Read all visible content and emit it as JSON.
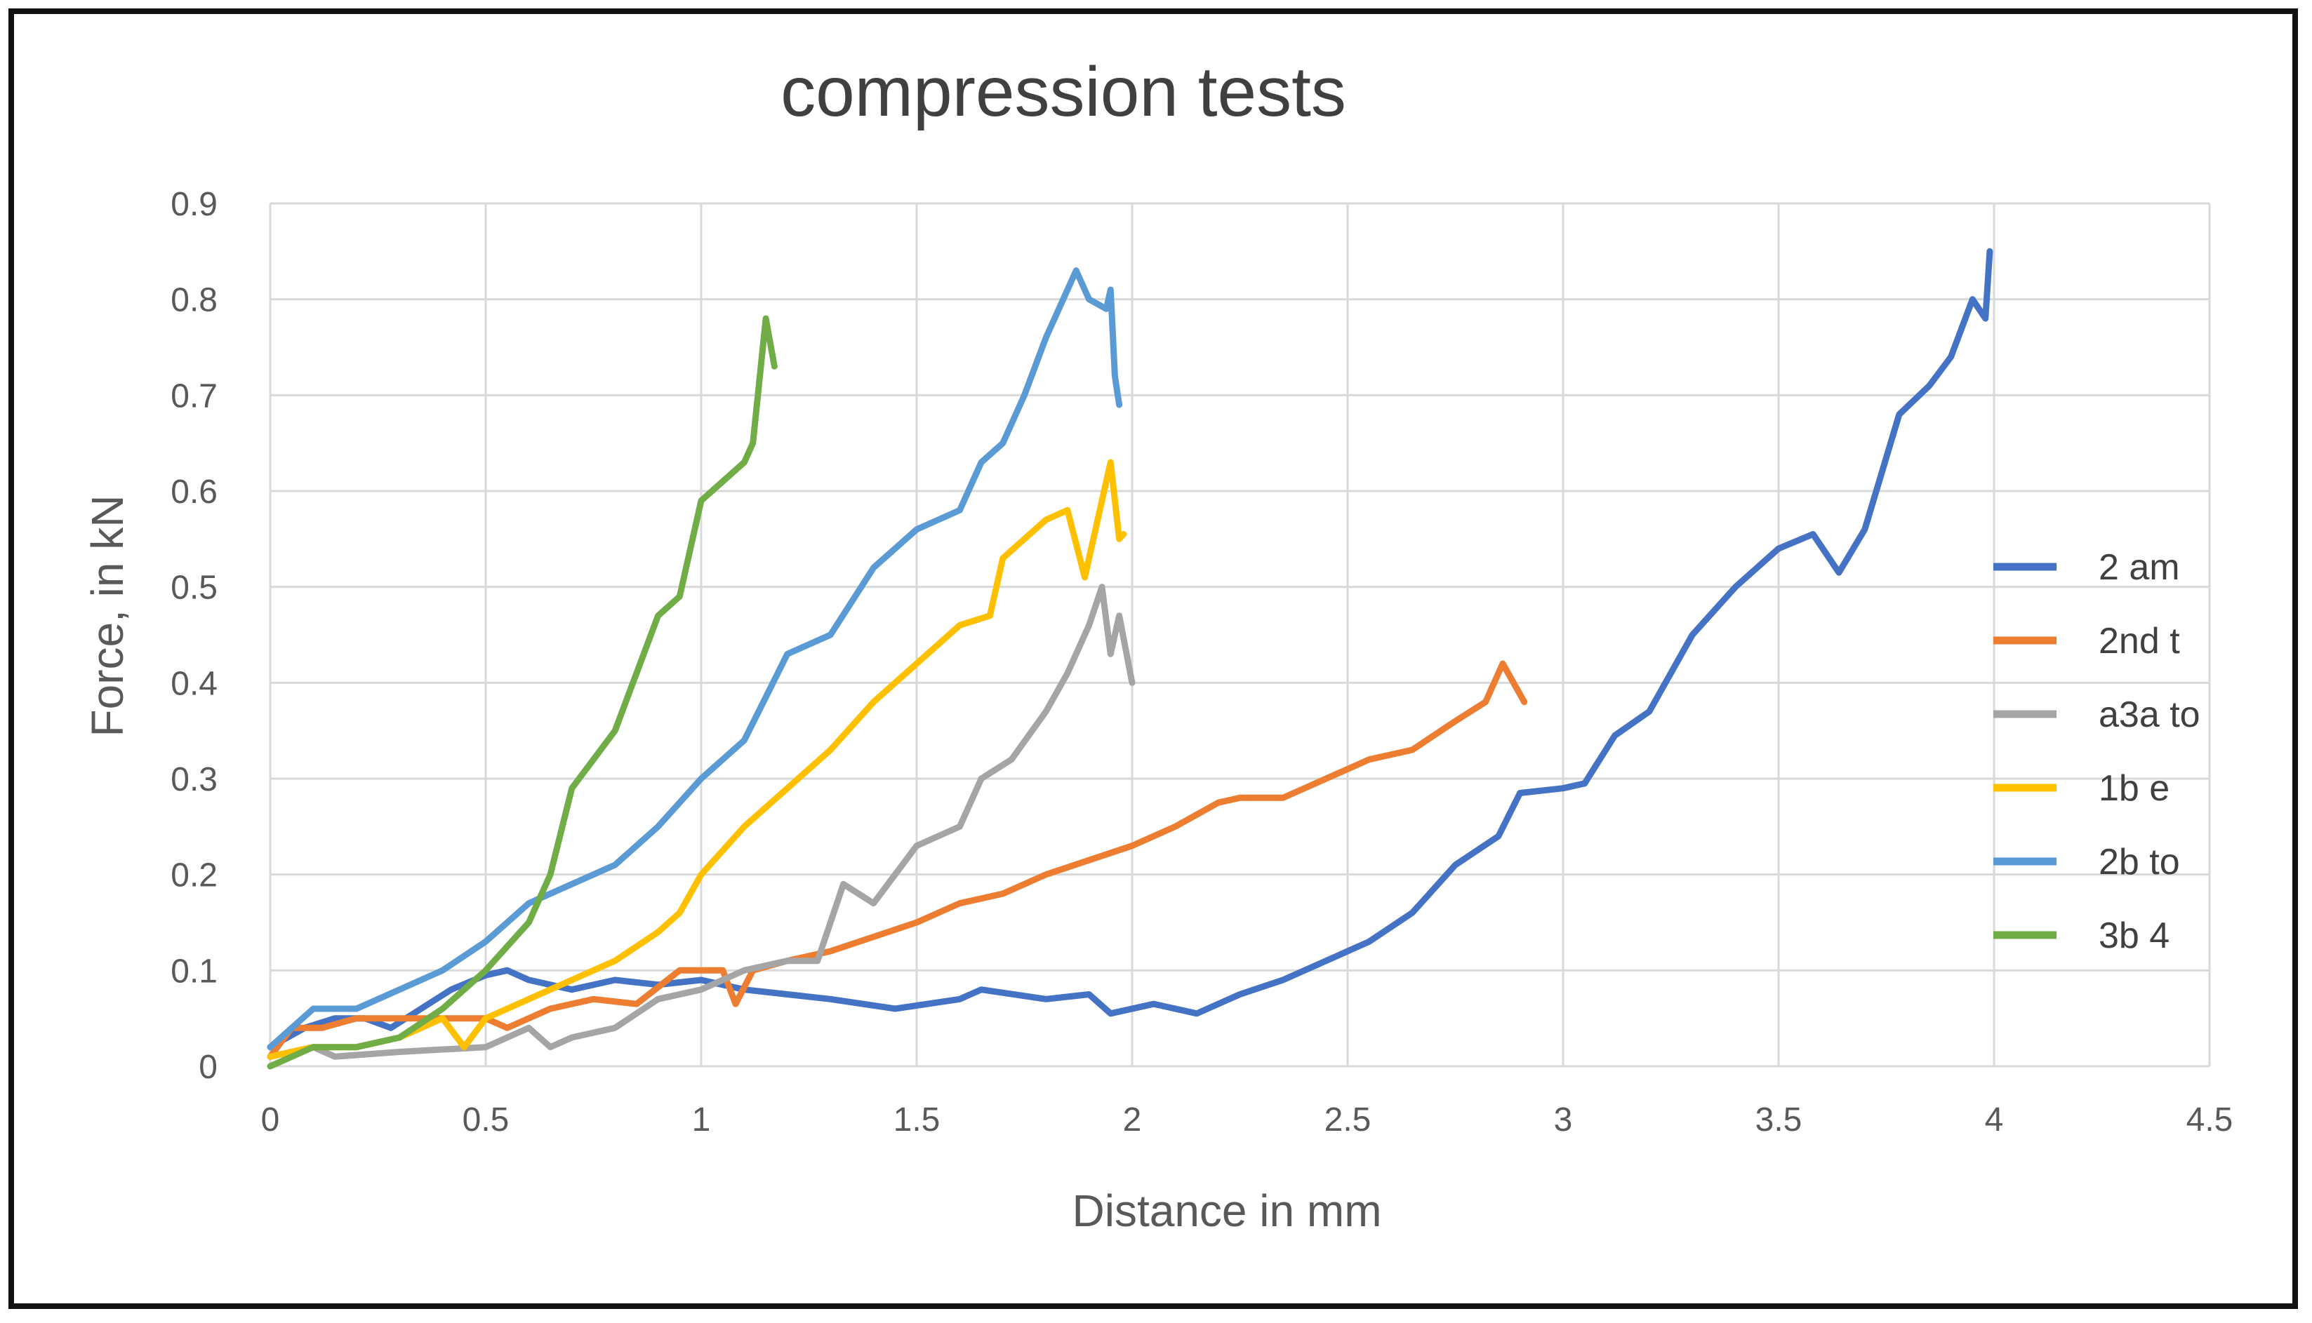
{
  "chart_data": {
    "type": "line",
    "title": "compression tests",
    "xlabel": "Distance in mm",
    "ylabel": "Force, in kN",
    "xlim": [
      0,
      4.5
    ],
    "ylim": [
      0,
      0.9
    ],
    "grid": true,
    "legend_position": "right",
    "x_ticks": [
      "0",
      "0.5",
      "1",
      "1.5",
      "2",
      "2.5",
      "3",
      "3.5",
      "4",
      "4.5"
    ],
    "y_ticks": [
      "0",
      "0.1",
      "0.2",
      "0.3",
      "0.4",
      "0.5",
      "0.6",
      "0.7",
      "0.8",
      "0.9"
    ],
    "series": [
      {
        "name": "2 am",
        "color": "#4472C4",
        "points": [
          [
            0,
            0.02
          ],
          [
            0.08,
            0.04
          ],
          [
            0.15,
            0.05
          ],
          [
            0.22,
            0.05
          ],
          [
            0.28,
            0.04
          ],
          [
            0.35,
            0.06
          ],
          [
            0.42,
            0.08
          ],
          [
            0.5,
            0.095
          ],
          [
            0.55,
            0.1
          ],
          [
            0.6,
            0.09
          ],
          [
            0.7,
            0.08
          ],
          [
            0.8,
            0.09
          ],
          [
            0.9,
            0.085
          ],
          [
            1.0,
            0.09
          ],
          [
            1.1,
            0.08
          ],
          [
            1.2,
            0.075
          ],
          [
            1.3,
            0.07
          ],
          [
            1.45,
            0.06
          ],
          [
            1.6,
            0.07
          ],
          [
            1.65,
            0.08
          ],
          [
            1.8,
            0.07
          ],
          [
            1.9,
            0.075
          ],
          [
            1.95,
            0.055
          ],
          [
            2.05,
            0.065
          ],
          [
            2.15,
            0.055
          ],
          [
            2.25,
            0.075
          ],
          [
            2.35,
            0.09
          ],
          [
            2.45,
            0.11
          ],
          [
            2.55,
            0.13
          ],
          [
            2.65,
            0.16
          ],
          [
            2.75,
            0.21
          ],
          [
            2.85,
            0.24
          ],
          [
            2.9,
            0.285
          ],
          [
            3.0,
            0.29
          ],
          [
            3.05,
            0.295
          ],
          [
            3.12,
            0.345
          ],
          [
            3.2,
            0.37
          ],
          [
            3.3,
            0.45
          ],
          [
            3.4,
            0.5
          ],
          [
            3.5,
            0.54
          ],
          [
            3.58,
            0.555
          ],
          [
            3.64,
            0.515
          ],
          [
            3.7,
            0.56
          ],
          [
            3.78,
            0.68
          ],
          [
            3.85,
            0.71
          ],
          [
            3.9,
            0.74
          ],
          [
            3.95,
            0.8
          ],
          [
            3.98,
            0.78
          ],
          [
            3.99,
            0.85
          ]
        ]
      },
      {
        "name": "2nd t",
        "color": "#ED7D31",
        "points": [
          [
            0,
            0.01
          ],
          [
            0.05,
            0.04
          ],
          [
            0.12,
            0.04
          ],
          [
            0.2,
            0.05
          ],
          [
            0.3,
            0.05
          ],
          [
            0.4,
            0.05
          ],
          [
            0.5,
            0.05
          ],
          [
            0.55,
            0.04
          ],
          [
            0.65,
            0.06
          ],
          [
            0.75,
            0.07
          ],
          [
            0.85,
            0.065
          ],
          [
            0.95,
            0.1
          ],
          [
            1.05,
            0.1
          ],
          [
            1.08,
            0.065
          ],
          [
            1.12,
            0.1
          ],
          [
            1.2,
            0.11
          ],
          [
            1.3,
            0.12
          ],
          [
            1.4,
            0.135
          ],
          [
            1.5,
            0.15
          ],
          [
            1.6,
            0.17
          ],
          [
            1.7,
            0.18
          ],
          [
            1.8,
            0.2
          ],
          [
            1.9,
            0.215
          ],
          [
            2.0,
            0.23
          ],
          [
            2.1,
            0.25
          ],
          [
            2.2,
            0.275
          ],
          [
            2.25,
            0.28
          ],
          [
            2.35,
            0.28
          ],
          [
            2.45,
            0.3
          ],
          [
            2.55,
            0.32
          ],
          [
            2.65,
            0.33
          ],
          [
            2.75,
            0.36
          ],
          [
            2.82,
            0.38
          ],
          [
            2.86,
            0.42
          ],
          [
            2.91,
            0.38
          ]
        ]
      },
      {
        "name": "a3a to",
        "color": "#A5A5A5",
        "points": [
          [
            0,
            0.01
          ],
          [
            0.1,
            0.02
          ],
          [
            0.15,
            0.01
          ],
          [
            0.3,
            0.015
          ],
          [
            0.5,
            0.02
          ],
          [
            0.6,
            0.04
          ],
          [
            0.65,
            0.02
          ],
          [
            0.7,
            0.03
          ],
          [
            0.8,
            0.04
          ],
          [
            0.9,
            0.07
          ],
          [
            1.0,
            0.08
          ],
          [
            1.1,
            0.1
          ],
          [
            1.2,
            0.11
          ],
          [
            1.27,
            0.11
          ],
          [
            1.33,
            0.19
          ],
          [
            1.4,
            0.17
          ],
          [
            1.45,
            0.2
          ],
          [
            1.5,
            0.23
          ],
          [
            1.6,
            0.25
          ],
          [
            1.65,
            0.3
          ],
          [
            1.72,
            0.32
          ],
          [
            1.8,
            0.37
          ],
          [
            1.85,
            0.41
          ],
          [
            1.9,
            0.46
          ],
          [
            1.93,
            0.5
          ],
          [
            1.95,
            0.43
          ],
          [
            1.97,
            0.47
          ],
          [
            2.0,
            0.4
          ]
        ]
      },
      {
        "name": "1b e",
        "color": "#FFC000",
        "points": [
          [
            0,
            0.01
          ],
          [
            0.1,
            0.02
          ],
          [
            0.2,
            0.02
          ],
          [
            0.3,
            0.03
          ],
          [
            0.4,
            0.05
          ],
          [
            0.45,
            0.02
          ],
          [
            0.5,
            0.05
          ],
          [
            0.6,
            0.07
          ],
          [
            0.7,
            0.09
          ],
          [
            0.8,
            0.11
          ],
          [
            0.9,
            0.14
          ],
          [
            0.95,
            0.16
          ],
          [
            1.0,
            0.2
          ],
          [
            1.1,
            0.25
          ],
          [
            1.2,
            0.29
          ],
          [
            1.3,
            0.33
          ],
          [
            1.4,
            0.38
          ],
          [
            1.5,
            0.42
          ],
          [
            1.6,
            0.46
          ],
          [
            1.67,
            0.47
          ],
          [
            1.7,
            0.53
          ],
          [
            1.8,
            0.57
          ],
          [
            1.85,
            0.58
          ],
          [
            1.89,
            0.51
          ],
          [
            1.93,
            0.59
          ],
          [
            1.95,
            0.63
          ],
          [
            1.97,
            0.55
          ],
          [
            1.98,
            0.555
          ]
        ]
      },
      {
        "name": "2b to",
        "color": "#5B9BD5",
        "points": [
          [
            0,
            0.02
          ],
          [
            0.1,
            0.06
          ],
          [
            0.2,
            0.06
          ],
          [
            0.3,
            0.08
          ],
          [
            0.4,
            0.1
          ],
          [
            0.5,
            0.13
          ],
          [
            0.6,
            0.17
          ],
          [
            0.7,
            0.19
          ],
          [
            0.8,
            0.21
          ],
          [
            0.9,
            0.25
          ],
          [
            1.0,
            0.3
          ],
          [
            1.1,
            0.34
          ],
          [
            1.2,
            0.43
          ],
          [
            1.3,
            0.45
          ],
          [
            1.4,
            0.52
          ],
          [
            1.5,
            0.56
          ],
          [
            1.6,
            0.58
          ],
          [
            1.65,
            0.63
          ],
          [
            1.7,
            0.65
          ],
          [
            1.75,
            0.7
          ],
          [
            1.8,
            0.76
          ],
          [
            1.87,
            0.83
          ],
          [
            1.9,
            0.8
          ],
          [
            1.94,
            0.79
          ],
          [
            1.95,
            0.81
          ],
          [
            1.96,
            0.72
          ],
          [
            1.97,
            0.69
          ]
        ]
      },
      {
        "name": "3b 4",
        "color": "#70AD47",
        "points": [
          [
            0,
            0.0
          ],
          [
            0.1,
            0.02
          ],
          [
            0.2,
            0.02
          ],
          [
            0.3,
            0.03
          ],
          [
            0.4,
            0.06
          ],
          [
            0.5,
            0.1
          ],
          [
            0.6,
            0.15
          ],
          [
            0.65,
            0.2
          ],
          [
            0.7,
            0.29
          ],
          [
            0.8,
            0.35
          ],
          [
            0.85,
            0.41
          ],
          [
            0.9,
            0.47
          ],
          [
            0.95,
            0.49
          ],
          [
            1.0,
            0.59
          ],
          [
            1.1,
            0.63
          ],
          [
            1.12,
            0.65
          ],
          [
            1.15,
            0.78
          ],
          [
            1.17,
            0.73
          ]
        ]
      }
    ]
  }
}
